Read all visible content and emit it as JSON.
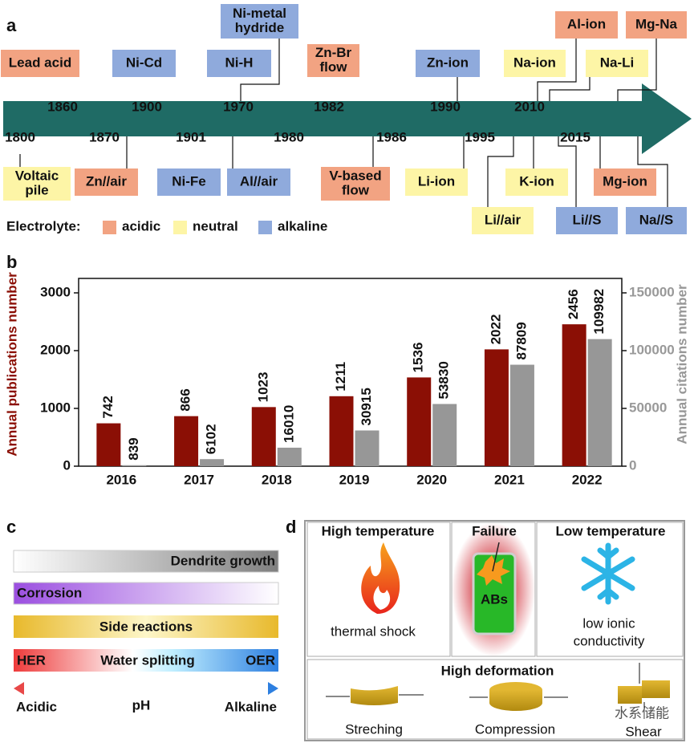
{
  "panel_a": {
    "letter": "a",
    "years_top": [
      1860,
      1900,
      1970,
      1982,
      1990,
      2010
    ],
    "years_bottom": [
      1800,
      1870,
      1901,
      1980,
      1986,
      1995,
      2015
    ],
    "items": [
      {
        "label": [
          "Lead acid"
        ],
        "kind": "acidic"
      },
      {
        "label": [
          "Ni-Cd"
        ],
        "kind": "alkaline"
      },
      {
        "label": [
          "Ni-H"
        ],
        "kind": "alkaline"
      },
      {
        "label": [
          "Ni-metal",
          "hydride"
        ],
        "kind": "alkaline"
      },
      {
        "label": [
          "Zn-Br",
          "flow"
        ],
        "kind": "acidic"
      },
      {
        "label": [
          "Zn-ion"
        ],
        "kind": "alkaline"
      },
      {
        "label": [
          "Na-ion"
        ],
        "kind": "neutral"
      },
      {
        "label": [
          "Al-ion"
        ],
        "kind": "acidic"
      },
      {
        "label": [
          "Na-Li"
        ],
        "kind": "neutral"
      },
      {
        "label": [
          "Mg-Na"
        ],
        "kind": "acidic"
      },
      {
        "label": [
          "Voltaic",
          "pile"
        ],
        "kind": "neutral"
      },
      {
        "label": [
          "Zn//air"
        ],
        "kind": "acidic"
      },
      {
        "label": [
          "Ni-Fe"
        ],
        "kind": "alkaline"
      },
      {
        "label": [
          "Al//air"
        ],
        "kind": "alkaline"
      },
      {
        "label": [
          "V-based",
          "flow"
        ],
        "kind": "acidic"
      },
      {
        "label": [
          "Li-ion"
        ],
        "kind": "neutral"
      },
      {
        "label": [
          "Li//air"
        ],
        "kind": "neutral"
      },
      {
        "label": [
          "K-ion"
        ],
        "kind": "neutral"
      },
      {
        "label": [
          "Li//S"
        ],
        "kind": "alkaline"
      },
      {
        "label": [
          "Mg-ion"
        ],
        "kind": "acidic"
      },
      {
        "label": [
          "Na//S"
        ],
        "kind": "alkaline"
      }
    ],
    "legend": {
      "title": "Electrolyte:",
      "entries": [
        {
          "name": "acidic",
          "color": "#f2a382"
        },
        {
          "name": "neutral",
          "color": "#fdf5a6"
        },
        {
          "name": "alkaline",
          "color": "#8faadc"
        }
      ]
    }
  },
  "chart_data": {
    "type": "bar",
    "letter": "b",
    "categories": [
      "2016",
      "2017",
      "2018",
      "2019",
      "2020",
      "2021",
      "2022"
    ],
    "series": [
      {
        "name": "Annual publications number",
        "color": "#8b0f05",
        "values": [
          742,
          866,
          1023,
          1211,
          1536,
          2022,
          2456
        ]
      },
      {
        "name": "Annual citations number",
        "color": "#979797",
        "axis": "y2",
        "values": [
          839,
          6102,
          16010,
          30915,
          53830,
          87809,
          109982
        ]
      }
    ],
    "ylabel": "Annual publications number",
    "y2label": "Annual citations number",
    "ylim": [
      0,
      3250
    ],
    "yticks": [
      0,
      1000,
      2000,
      3000
    ],
    "y2lim": [
      0,
      162500
    ],
    "y2ticks": [
      0,
      50000,
      100000,
      150000
    ]
  },
  "panel_c": {
    "letter": "c",
    "bars": [
      "Dendrite growth",
      "Corrosion",
      "Side reactions"
    ],
    "water": {
      "left": "HER",
      "middle": "Water splitting",
      "right": "OER"
    },
    "axis": {
      "left": "Acidic",
      "middle": "pH",
      "right": "Alkaline"
    }
  },
  "panel_d": {
    "letter": "d",
    "high_temperature": {
      "title": "High temperature",
      "caption": "thermal shock"
    },
    "failure": {
      "title": "Failure",
      "label": "ABs"
    },
    "low_temperature": {
      "title": "Low temperature",
      "caption": [
        "low ionic",
        "conductivity"
      ]
    },
    "deformation": {
      "title": "High deformation",
      "modes": [
        "Streching",
        "Compression",
        "Shear"
      ]
    },
    "watermark": "水系储能"
  }
}
